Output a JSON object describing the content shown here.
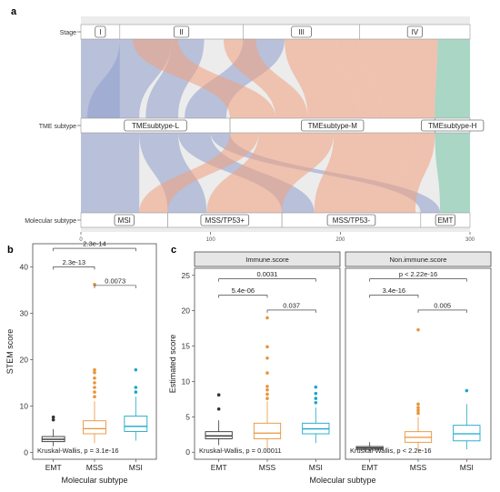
{
  "colors": {
    "blue": "#8e9ccc",
    "orange": "#f0a07e",
    "green": "#72c4a6",
    "emt": "#333333",
    "mss": "#e8943a",
    "msi": "#1aa8c9",
    "strip_bg": "#e6e6e6"
  },
  "chart_data": [
    {
      "panel": "a",
      "type": "sankey",
      "axes": [
        "Stage",
        "TME subtype",
        "Molecular subtype"
      ],
      "xlim": [
        0,
        300
      ],
      "xticks": [
        0,
        100,
        200,
        300
      ],
      "nodes": {
        "Stage": [
          {
            "label": "I",
            "start": 0,
            "end": 30
          },
          {
            "label": "II",
            "start": 30,
            "end": 125
          },
          {
            "label": "III",
            "start": 125,
            "end": 215
          },
          {
            "label": "IV",
            "start": 215,
            "end": 300
          }
        ],
        "TME subtype": [
          {
            "label": "TMEsubtype-L",
            "start": 0,
            "end": 115
          },
          {
            "label": "TMEsubtype-M",
            "start": 115,
            "end": 273
          },
          {
            "label": "TMEsubtype-H",
            "start": 273,
            "end": 300
          }
        ],
        "Molecular subtype": [
          {
            "label": "MSI",
            "start": 0,
            "end": 67
          },
          {
            "label": "MSS/TP53+",
            "start": 67,
            "end": 155
          },
          {
            "label": "MSS/TP53-",
            "start": 155,
            "end": 262
          },
          {
            "label": "EMT",
            "start": 262,
            "end": 300
          }
        ]
      }
    },
    {
      "panel": "b",
      "type": "boxplot",
      "xlabel": "Molecular subtype",
      "ylabel": "STEM score",
      "categories": [
        "EMT",
        "MSS",
        "MSI"
      ],
      "ylim": [
        -1.5,
        45
      ],
      "yticks": [
        0,
        10,
        20,
        30,
        40
      ],
      "boxes": [
        {
          "q1": 2.3,
          "median": 2.8,
          "q3": 3.4,
          "whisker_low": 1.3,
          "whisker_high": 5.0,
          "outliers": [
            7.0,
            7.6
          ]
        },
        {
          "q1": 4.0,
          "median": 5.1,
          "q3": 6.8,
          "whisker_low": 2.0,
          "whisker_high": 11.0,
          "outliers": [
            12.0,
            13.0,
            14.0,
            15.0,
            16.0,
            17.2,
            17.8,
            36.2
          ]
        },
        {
          "q1": 4.5,
          "median": 5.6,
          "q3": 7.8,
          "whisker_low": 2.5,
          "whisker_high": 12.0,
          "outliers": [
            13.0,
            14.0,
            17.8
          ]
        }
      ],
      "comparisons": [
        {
          "groups": [
            0,
            2
          ],
          "label": "2.3e-14",
          "y": 44
        },
        {
          "groups": [
            0,
            1
          ],
          "label": "2.3e-13",
          "y": 40
        },
        {
          "groups": [
            1,
            2
          ],
          "label": "0.0073",
          "y": 36
        }
      ],
      "annotation": "Kruskal-Wallis, p = 3.1e-16"
    },
    {
      "panel": "c",
      "type": "boxplot-faceted",
      "xlabel": "Molecular subtype",
      "ylabel": "Estimated score",
      "categories": [
        "EMT",
        "MSS",
        "MSI"
      ],
      "ylim": [
        -1,
        26
      ],
      "yticks": [
        0,
        5,
        10,
        15,
        20,
        25
      ],
      "facets": [
        {
          "title": "Immune.score",
          "boxes": [
            {
              "q1": 1.9,
              "median": 2.3,
              "q3": 2.9,
              "whisker_low": 1.0,
              "whisker_high": 4.5,
              "outliers": [
                6.1,
                8.1
              ]
            },
            {
              "q1": 1.9,
              "median": 2.7,
              "q3": 4.1,
              "whisker_low": 0.5,
              "whisker_high": 7.2,
              "outliers": [
                7.6,
                8.2,
                8.8,
                9.3,
                11.2,
                13.3,
                14.9,
                19.0
              ]
            },
            {
              "q1": 2.6,
              "median": 3.3,
              "q3": 4.1,
              "whisker_low": 1.3,
              "whisker_high": 6.3,
              "outliers": [
                7.0,
                7.6,
                8.3,
                9.2
              ]
            }
          ],
          "comparisons": [
            {
              "groups": [
                0,
                2
              ],
              "label": "0.0031",
              "y": 24.5
            },
            {
              "groups": [
                0,
                1
              ],
              "label": "5.4e-06",
              "y": 22.2
            },
            {
              "groups": [
                1,
                2
              ],
              "label": "0.037",
              "y": 20.1
            }
          ],
          "annotation": "Kruskal-Wallis, p = 0.00011"
        },
        {
          "title": "Non.immune.score",
          "boxes": [
            {
              "q1": 0.4,
              "median": 0.6,
              "q3": 0.8,
              "whisker_low": 0.1,
              "whisker_high": 1.4,
              "outliers": []
            },
            {
              "q1": 1.4,
              "median": 2.1,
              "q3": 2.9,
              "whisker_low": 0.3,
              "whisker_high": 5.0,
              "outliers": [
                5.5,
                5.9,
                6.3,
                6.8,
                17.3
              ]
            },
            {
              "q1": 1.6,
              "median": 2.6,
              "q3": 3.8,
              "whisker_low": 0.4,
              "whisker_high": 6.8,
              "outliers": [
                8.7
              ]
            }
          ],
          "comparisons": [
            {
              "groups": [
                0,
                2
              ],
              "label": "p < 2.22e-16",
              "y": 24.5
            },
            {
              "groups": [
                0,
                1
              ],
              "label": "3.4e-16",
              "y": 22.2
            },
            {
              "groups": [
                1,
                2
              ],
              "label": "0.005",
              "y": 20.1
            }
          ],
          "annotation": "Kruskal-Wallis, p < 2.2e-16"
        }
      ]
    }
  ],
  "panel_labels": [
    "a",
    "b",
    "c"
  ]
}
